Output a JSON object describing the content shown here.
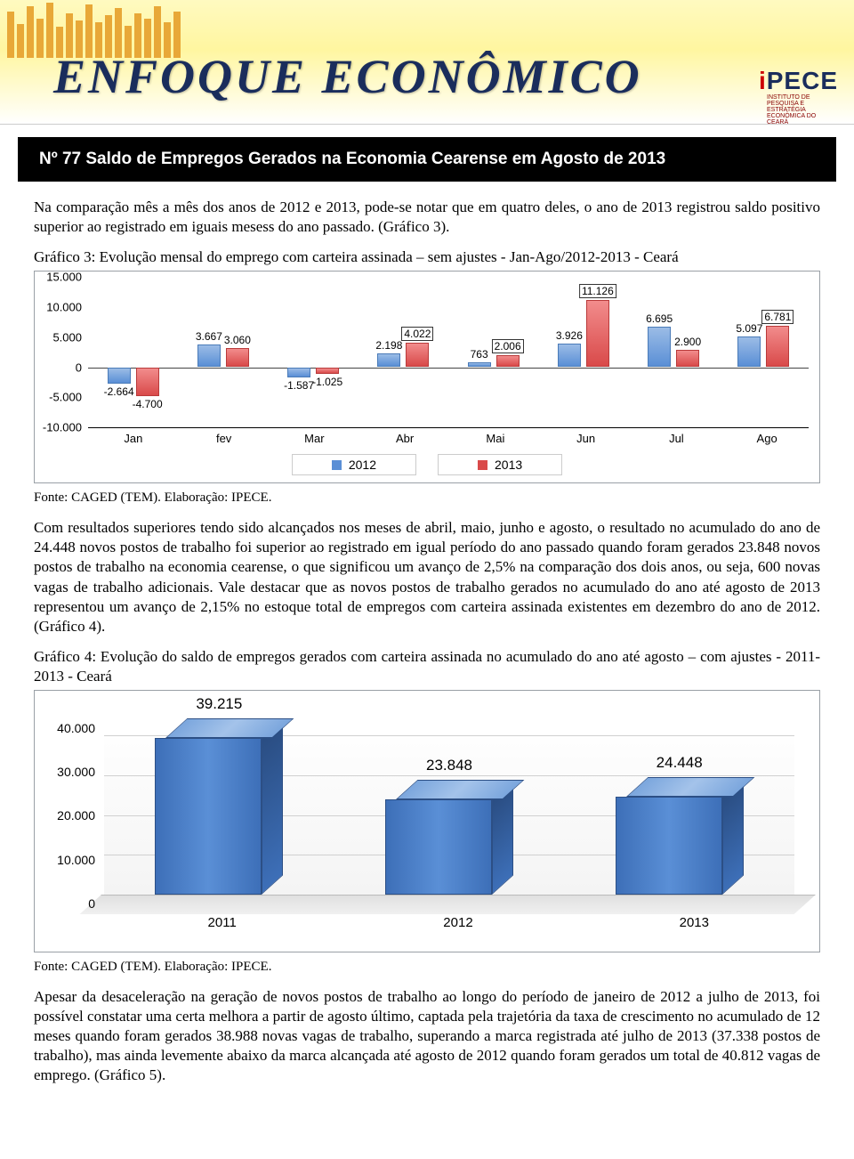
{
  "banner": {
    "title": "ENFOQUE ECONÔMICO",
    "logo": "iPECE",
    "logo_sub": "INSTITUTO DE PESQUISA E ESTRATÉGIA ECONÔMICA DO CEARÁ"
  },
  "strip": "Nº 77 Saldo de Empregos Gerados na Economia Cearense em Agosto de 2013",
  "para1": "Na comparação mês a mês dos anos de 2012 e 2013, pode-se notar que em quatro deles, o ano de 2013 registrou saldo positivo superior ao registrado em iguais mesess do ano passado. (Gráfico 3).",
  "chart3": {
    "caption": "Gráfico 3: Evolução mensal do emprego com carteira assinada – sem ajustes - Jan-Ago/2012-2013 - Ceará",
    "type": "grouped-bar",
    "ylim": [
      -10000,
      15000
    ],
    "yticks": [
      "15.000",
      "10.000",
      "5.000",
      "0",
      "-5.000",
      "-10.000"
    ],
    "ytick_positions_pct": [
      0,
      20,
      40,
      60,
      80,
      100
    ],
    "zero_pct": 60,
    "categories": [
      "Jan",
      "fev",
      "Mar",
      "Abr",
      "Mai",
      "Jun",
      "Jul",
      "Ago"
    ],
    "series2012": [
      -2664,
      3667,
      -1587,
      2198,
      763,
      3926,
      6695,
      5097
    ],
    "series2013": [
      -4700,
      3060,
      -1025,
      4022,
      2006,
      11126,
      2900,
      6781
    ],
    "boxed2013": [
      false,
      false,
      false,
      true,
      true,
      true,
      false,
      true
    ],
    "labels2012": [
      "-2.664",
      "3.667",
      "-1.587",
      "2.198",
      "763",
      "3.926",
      "6.695",
      "5.097"
    ],
    "labels2013": [
      "-4.700",
      "3.060",
      "-1.025",
      "4.022",
      "2.006",
      "11.126",
      "2.900",
      "6.781"
    ],
    "bar_color_2012": "#5a8fd6",
    "bar_color_2013": "#d94a4a",
    "legend": {
      "a": "2012",
      "b": "2013"
    }
  },
  "source_line": "Fonte: CAGED (TEM). Elaboração: IPECE.",
  "para2": "Com resultados superiores tendo sido alcançados nos meses de abril, maio, junho e agosto, o resultado no acumulado do ano de 24.448 novos postos de trabalho foi superior ao registrado em igual período do ano passado quando foram gerados 23.848 novos postos de trabalho na economia cearense, o que significou um avanço de 2,5% na comparação dos dois anos, ou seja, 600 novas vagas de trabalho adicionais. Vale destacar que as novos postos de trabalho gerados no acumulado do ano até agosto de 2013 representou um avanço de 2,15% no estoque total de empregos com carteira assinada existentes em dezembro do ano de 2012. (Gráfico 4).",
  "chart4": {
    "caption": "Gráfico 4: Evolução do saldo de empregos gerados com carteira assinada no acumulado do ano até agosto – com ajustes - 2011-2013 - Ceará",
    "type": "bar-3d",
    "categories": [
      "2011",
      "2012",
      "2013"
    ],
    "values": [
      39215,
      23848,
      24448
    ],
    "labels": [
      "39.215",
      "23.848",
      "24.448"
    ],
    "ylim": [
      0,
      40000
    ],
    "yticks": [
      "40.000",
      "30.000",
      "20.000",
      "10.000",
      "0"
    ],
    "ytick_positions_pct": [
      0,
      25,
      50,
      75,
      100
    ],
    "bar_color": "#3d6fb8"
  },
  "para3": "Apesar da desaceleração na geração de novos postos de trabalho ao longo do período de janeiro de 2012 a julho de 2013, foi possível constatar uma certa melhora a partir de agosto último, captada pela trajetória da taxa de crescimento no acumulado de 12 meses quando foram gerados 38.988 novas vagas de trabalho, superando a marca registrada até julho de 2013 (37.338 postos de trabalho), mas ainda levemente abaixo da marca alcançada até agosto de 2012 quando foram gerados um total de 40.812 vagas de emprego. (Gráfico 5)."
}
